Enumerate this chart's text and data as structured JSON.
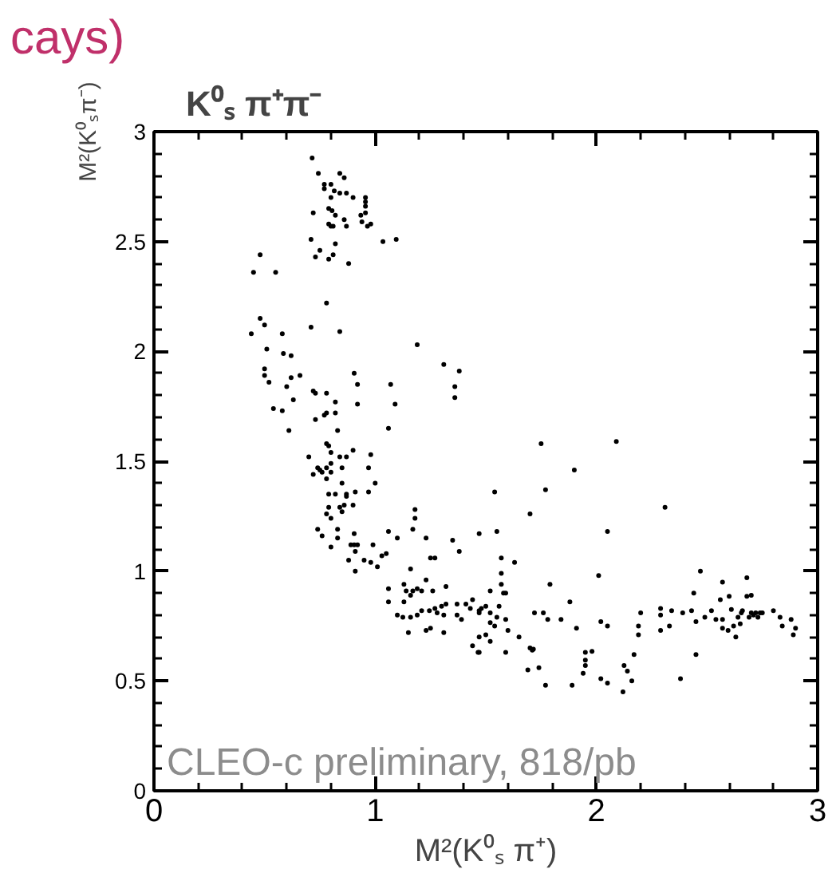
{
  "chart_data": {
    "type": "scatter",
    "title": "K⁰ₛ π⁺π⁻",
    "xlabel": "M²(K⁰ₛ π⁺)",
    "ylabel": "M²(K⁰ₛπ⁻)",
    "annotations": [
      "cays)",
      "CLEO-c preliminary, 818/pb"
    ],
    "xlim": [
      0,
      3
    ],
    "ylim": [
      0,
      3
    ],
    "xticks": [
      0,
      1,
      2,
      3
    ],
    "yticks": [
      0,
      0.5,
      1,
      1.5,
      2,
      2.5,
      3
    ],
    "grid": false,
    "marker": "circle",
    "series": [
      {
        "color": "#000000",
        "x": [
          0.715,
          0.743,
          0.84,
          0.86,
          0.77,
          0.8,
          0.77,
          0.815,
          0.84,
          0.87,
          0.9,
          0.8,
          0.956,
          0.956,
          0.956,
          0.956,
          0.79,
          0.805,
          0.82,
          0.86,
          0.72,
          0.935,
          0.94,
          0.965,
          0.98,
          0.79,
          0.8,
          0.81,
          0.87,
          0.71,
          0.82,
          1.035,
          1.095,
          0.48,
          0.75,
          0.73,
          0.81,
          0.79,
          0.88,
          0.45,
          0.55,
          0.78,
          0.48,
          0.5,
          0.44,
          0.71,
          0.84,
          0.58,
          1.19,
          0.51,
          0.585,
          0.62,
          1.31,
          1.38,
          0.5,
          0.5,
          0.52,
          0.62,
          0.66,
          0.905,
          0.6,
          0.72,
          0.73,
          0.78,
          0.92,
          1.07,
          1.36,
          1.36,
          0.63,
          0.82,
          0.92,
          1.09,
          0.54,
          0.58,
          0.78,
          0.77,
          0.82,
          0.73,
          1.06,
          0.61,
          0.83,
          0.78,
          0.79,
          0.8,
          0.9,
          0.98,
          0.7,
          0.84,
          0.87,
          0.8,
          0.85,
          0.97,
          0.74,
          0.75,
          0.78,
          0.76,
          0.72,
          0.8,
          0.78,
          0.85,
          1.0,
          0.97,
          0.79,
          0.82,
          0.87,
          0.91,
          0.87,
          0.9,
          0.79,
          0.84,
          0.86,
          0.85,
          1.18,
          1.18,
          0.78,
          0.8,
          0.74,
          0.76,
          0.83,
          0.83,
          0.905,
          0.89,
          0.905,
          0.92,
          0.91,
          0.8,
          0.99,
          1.06,
          1.1,
          1.23,
          1.35,
          1.38,
          1.47,
          1.17,
          0.88,
          0.91,
          0.95,
          0.98,
          1.01,
          1.03,
          1.05,
          1.25,
          1.27,
          1.16,
          1.06,
          1.06,
          1.13,
          1.14,
          1.17,
          1.19,
          1.23,
          1.21,
          1.16,
          1.1,
          1.125,
          1.16,
          1.19,
          1.21,
          1.245,
          1.27,
          1.3,
          1.32,
          1.32,
          1.26,
          1.15,
          1.23,
          1.25,
          1.31,
          1.28,
          1.31,
          1.37,
          1.39,
          1.41,
          1.37,
          1.43,
          1.44,
          1.47,
          1.13,
          1.44,
          1.47,
          1.75,
          2.09,
          1.54,
          1.77,
          1.9,
          2.31,
          1.7,
          1.55,
          2.05,
          1.57,
          1.63,
          1.57,
          1.57,
          1.52,
          1.58,
          1.59,
          1.79,
          2.01,
          1.47,
          1.5,
          1.52,
          1.56,
          1.48,
          1.52,
          1.54,
          1.55,
          1.59,
          1.6,
          1.65,
          1.47,
          1.5,
          1.52,
          1.465,
          1.59,
          1.72,
          1.76,
          1.78,
          1.84,
          1.88,
          1.91,
          1.7,
          1.71,
          1.715,
          1.69,
          1.74,
          1.77,
          1.89,
          1.95,
          1.95,
          1.95,
          1.94,
          1.98,
          2.02,
          2.05,
          2.02,
          2.05,
          2.12,
          2.125,
          2.14,
          2.16,
          2.17,
          2.2,
          2.19,
          2.19,
          2.29,
          2.29,
          2.29,
          2.33,
          2.34,
          2.38,
          2.45,
          2.39,
          2.43,
          2.45,
          2.44,
          2.47,
          2.49,
          2.52,
          2.54,
          2.56,
          2.57,
          2.57,
          2.57,
          2.6,
          2.595,
          2.61,
          2.62,
          2.63,
          2.64,
          2.65,
          2.655,
          2.66,
          2.68,
          2.68,
          2.69,
          2.7,
          2.7,
          2.71,
          2.72,
          2.73,
          2.74,
          2.75,
          2.8,
          2.83,
          2.84,
          2.88,
          2.89,
          2.9
        ],
        "values": [
          2.88,
          2.81,
          2.81,
          2.79,
          2.76,
          2.76,
          2.74,
          2.73,
          2.72,
          2.72,
          2.7,
          2.7,
          2.7,
          2.68,
          2.66,
          2.63,
          2.65,
          2.64,
          2.62,
          2.6,
          2.63,
          2.62,
          2.59,
          2.57,
          2.58,
          2.58,
          2.57,
          2.57,
          2.57,
          2.51,
          2.49,
          2.5,
          2.51,
          2.44,
          2.46,
          2.43,
          2.44,
          2.42,
          2.4,
          2.36,
          2.36,
          2.22,
          2.15,
          2.12,
          2.08,
          2.11,
          2.09,
          2.08,
          2.03,
          2.01,
          1.99,
          1.98,
          1.94,
          1.91,
          1.92,
          1.89,
          1.86,
          1.88,
          1.89,
          1.9,
          1.84,
          1.82,
          1.81,
          1.81,
          1.85,
          1.85,
          1.84,
          1.79,
          1.78,
          1.77,
          1.76,
          1.76,
          1.74,
          1.73,
          1.72,
          1.71,
          1.72,
          1.69,
          1.65,
          1.64,
          1.64,
          1.58,
          1.57,
          1.54,
          1.55,
          1.53,
          1.52,
          1.52,
          1.52,
          1.49,
          1.47,
          1.47,
          1.47,
          1.46,
          1.47,
          1.45,
          1.44,
          1.45,
          1.42,
          1.4,
          1.4,
          1.36,
          1.35,
          1.35,
          1.35,
          1.36,
          1.34,
          1.3,
          1.29,
          1.29,
          1.3,
          1.27,
          1.28,
          1.24,
          1.26,
          1.24,
          1.19,
          1.16,
          1.19,
          1.15,
          1.17,
          1.12,
          1.12,
          1.12,
          1.09,
          1.11,
          1.12,
          1.18,
          1.15,
          1.15,
          1.14,
          1.09,
          1.17,
          1.19,
          1.05,
          1.0,
          1.05,
          1.04,
          1.02,
          1.07,
          1.08,
          1.06,
          1.06,
          1.01,
          0.92,
          0.86,
          0.94,
          0.91,
          0.91,
          0.92,
          0.96,
          0.91,
          0.89,
          0.8,
          0.79,
          0.79,
          0.8,
          0.82,
          0.82,
          0.83,
          0.84,
          0.85,
          0.93,
          0.91,
          0.72,
          0.73,
          0.74,
          0.72,
          0.81,
          0.8,
          0.8,
          0.78,
          0.85,
          0.85,
          0.83,
          0.87,
          0.82,
          0.86,
          0.66,
          0.63,
          1.58,
          1.59,
          1.36,
          1.37,
          1.46,
          1.29,
          1.26,
          1.18,
          1.18,
          1.06,
          1.04,
          0.99,
          0.94,
          0.91,
          0.9,
          0.9,
          0.94,
          0.98,
          0.81,
          0.84,
          0.81,
          0.84,
          0.83,
          0.765,
          0.75,
          0.79,
          0.78,
          0.73,
          0.7,
          0.7,
          0.71,
          0.68,
          0.63,
          0.63,
          0.81,
          0.81,
          0.78,
          0.78,
          0.86,
          0.74,
          0.65,
          0.64,
          0.645,
          0.55,
          0.56,
          0.48,
          0.48,
          0.63,
          0.595,
          0.57,
          0.535,
          0.635,
          0.51,
          0.49,
          0.77,
          0.75,
          0.45,
          0.57,
          0.545,
          0.5,
          0.62,
          0.81,
          0.75,
          0.71,
          0.83,
          0.8,
          0.73,
          0.75,
          0.82,
          0.51,
          0.62,
          0.81,
          0.82,
          0.77,
          0.9,
          1.0,
          0.79,
          0.82,
          0.78,
          0.87,
          0.95,
          0.78,
          0.74,
          0.885,
          0.73,
          0.825,
          0.75,
          0.7,
          0.79,
          0.76,
          0.81,
          0.82,
          0.885,
          0.97,
          0.79,
          0.89,
          0.81,
          0.8,
          0.81,
          0.79,
          0.81,
          0.81,
          0.82,
          0.79,
          0.75,
          0.78,
          0.71,
          0.74
        ]
      }
    ]
  }
}
